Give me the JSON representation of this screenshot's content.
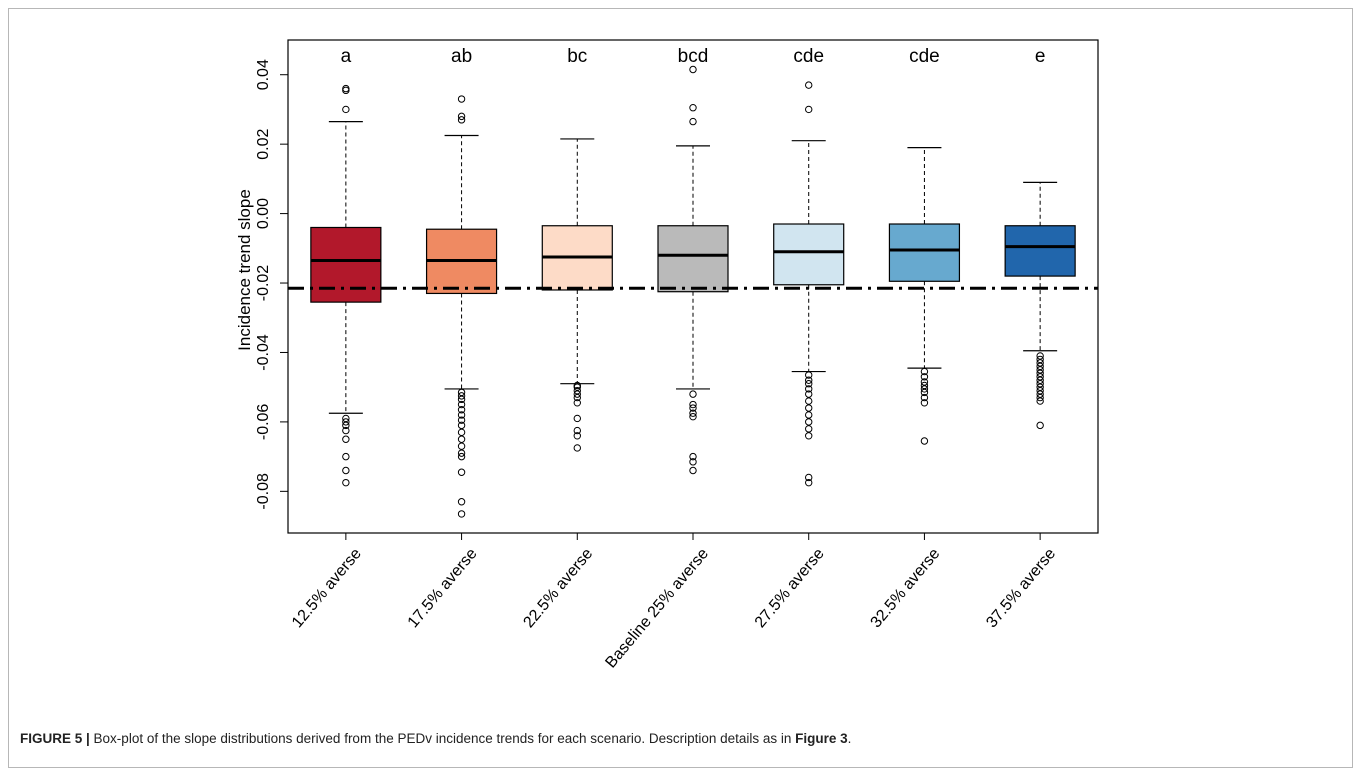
{
  "figure": {
    "label": "FIGURE 5 |",
    "caption_text": " Box-plot of the slope distributions derived from the PEDv incidence trends for each scenario. Description details as in ",
    "caption_ref": "Figure 3",
    "caption_end": "."
  },
  "chart_data": {
    "type": "box",
    "ylabel": "Incidence trend slope",
    "xlabel": "",
    "ylim": [
      -0.092,
      0.05
    ],
    "yticks": [
      -0.08,
      -0.06,
      -0.04,
      -0.02,
      0.0,
      0.02,
      0.04
    ],
    "ytick_labels": [
      "-0.08",
      "-0.06",
      "-0.04",
      "-0.02",
      "0.00",
      "0.02",
      "0.04"
    ],
    "reference_line": {
      "y": -0.0215,
      "style": "dash-dot"
    },
    "grid": false,
    "categories": [
      "12.5% averse",
      "17.5% averse",
      "22.5% averse",
      "Baseline 25% averse",
      "27.5% averse",
      "32.5% averse",
      "37.5% averse"
    ],
    "letters": [
      "a",
      "ab",
      "bc",
      "bcd",
      "cde",
      "cde",
      "e"
    ],
    "colors": [
      "#b2182b",
      "#ef8a62",
      "#fddbc7",
      "#bababa",
      "#d1e5f0",
      "#67a9cf",
      "#2166ac"
    ],
    "boxes": [
      {
        "whisker_low": -0.0575,
        "q1": -0.0255,
        "median": -0.0135,
        "q3": -0.004,
        "whisker_high": 0.0265,
        "outliers": [
          0.0355,
          0.036,
          0.03,
          -0.059,
          -0.06,
          -0.061,
          -0.0625,
          -0.065,
          -0.07,
          -0.074,
          -0.0775
        ]
      },
      {
        "whisker_low": -0.0505,
        "q1": -0.023,
        "median": -0.0135,
        "q3": -0.0045,
        "whisker_high": 0.0225,
        "outliers": [
          0.033,
          0.028,
          0.027,
          -0.0515,
          -0.0525,
          -0.0535,
          -0.055,
          -0.0565,
          -0.058,
          -0.0595,
          -0.061,
          -0.063,
          -0.065,
          -0.067,
          -0.069,
          -0.07,
          -0.0745,
          -0.083,
          -0.0865
        ]
      },
      {
        "whisker_low": -0.049,
        "q1": -0.022,
        "median": -0.0125,
        "q3": -0.0035,
        "whisker_high": 0.0215,
        "outliers": [
          -0.0495,
          -0.05,
          -0.051,
          -0.052,
          -0.053,
          -0.0545,
          -0.059,
          -0.0625,
          -0.064,
          -0.0675
        ]
      },
      {
        "whisker_low": -0.0505,
        "q1": -0.0225,
        "median": -0.012,
        "q3": -0.0035,
        "whisker_high": 0.0195,
        "outliers": [
          0.0415,
          0.0305,
          0.0265,
          -0.052,
          -0.055,
          -0.056,
          -0.0575,
          -0.0585,
          -0.07,
          -0.0715,
          -0.074
        ]
      },
      {
        "whisker_low": -0.0455,
        "q1": -0.0205,
        "median": -0.011,
        "q3": -0.003,
        "whisker_high": 0.021,
        "outliers": [
          0.037,
          0.03,
          -0.0465,
          -0.048,
          -0.049,
          -0.0505,
          -0.052,
          -0.054,
          -0.056,
          -0.058,
          -0.06,
          -0.062,
          -0.064,
          -0.076,
          -0.0775
        ]
      },
      {
        "whisker_low": -0.0445,
        "q1": -0.0195,
        "median": -0.0105,
        "q3": -0.003,
        "whisker_high": 0.019,
        "outliers": [
          -0.0455,
          -0.047,
          -0.0485,
          -0.0495,
          -0.0505,
          -0.0515,
          -0.053,
          -0.0545,
          -0.0655
        ]
      },
      {
        "whisker_low": -0.0395,
        "q1": -0.018,
        "median": -0.0095,
        "q3": -0.0035,
        "whisker_high": 0.009,
        "outliers": [
          -0.041,
          -0.042,
          -0.043,
          -0.044,
          -0.045,
          -0.046,
          -0.047,
          -0.048,
          -0.049,
          -0.05,
          -0.051,
          -0.052,
          -0.053,
          -0.054,
          -0.061
        ]
      }
    ]
  }
}
